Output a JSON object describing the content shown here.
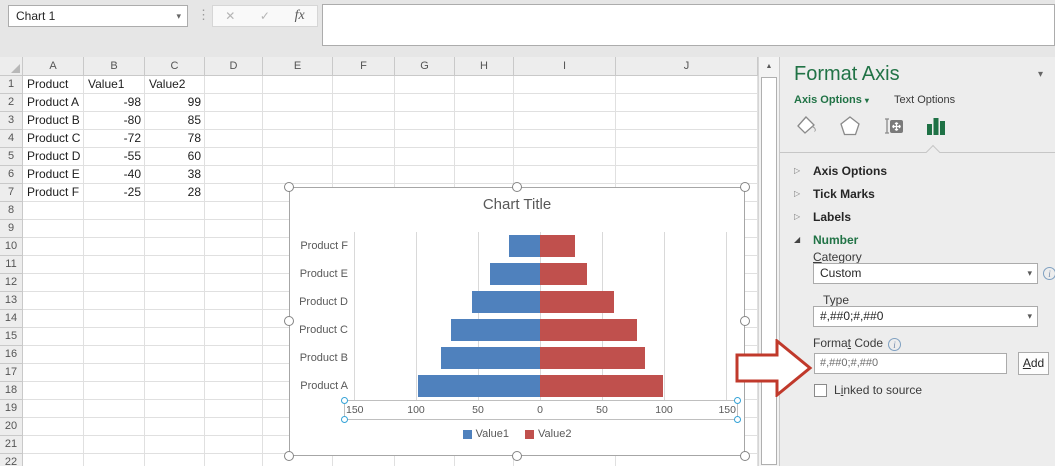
{
  "titlebar": {
    "name_box": "Chart 1",
    "formula_value": "",
    "icons": {
      "dropdown": "▾",
      "grip": "⋮",
      "cancel": "✕",
      "enter": "✓",
      "fx": "fx",
      "scroll_up": "▲",
      "info": "i"
    }
  },
  "grid": {
    "columns": [
      "A",
      "B",
      "C",
      "D",
      "E",
      "F",
      "G",
      "H",
      "I",
      "J"
    ],
    "rows": [
      "1",
      "2",
      "3",
      "4",
      "5",
      "6",
      "7",
      "8",
      "9",
      "10",
      "11",
      "12",
      "13",
      "14",
      "15",
      "16",
      "17",
      "18",
      "19",
      "20",
      "21",
      "22"
    ],
    "table": {
      "rows": [
        [
          "Product",
          "Value1",
          "Value2"
        ],
        [
          "Product A",
          "-98",
          "99"
        ],
        [
          "Product B",
          "-80",
          "85"
        ],
        [
          "Product C",
          "-72",
          "78"
        ],
        [
          "Product D",
          "-55",
          "60"
        ],
        [
          "Product E",
          "-40",
          "38"
        ],
        [
          "Product F",
          "-25",
          "28"
        ]
      ]
    }
  },
  "chart_data": {
    "type": "bar",
    "subtype": "tornado-horizontal",
    "title": "Chart Title",
    "categories": [
      "Product A",
      "Product B",
      "Product C",
      "Product D",
      "Product E",
      "Product F"
    ],
    "category_order_top_to_bottom": [
      "Product F",
      "Product E",
      "Product D",
      "Product C",
      "Product B",
      "Product A"
    ],
    "series": [
      {
        "name": "Value1",
        "color": "#4F81BD",
        "values": [
          -98,
          -80,
          -72,
          -55,
          -40,
          -25
        ]
      },
      {
        "name": "Value2",
        "color": "#C0504D",
        "values": [
          99,
          85,
          78,
          60,
          38,
          28
        ]
      }
    ],
    "x_axis": {
      "range": [
        -150,
        150
      ],
      "tick_step": 50,
      "tick_labels": [
        "150",
        "100",
        "50",
        "0",
        "50",
        "100",
        "150"
      ],
      "number_format": "#,##0;#,##0",
      "selected": true
    },
    "legend": {
      "position": "bottom"
    },
    "gridlines": true,
    "chart_selected": true
  },
  "panel": {
    "title": "Format Axis",
    "tabs": [
      {
        "label": "Axis Options",
        "selected": true
      },
      {
        "label": "Text Options",
        "selected": false
      }
    ],
    "icon_tabs": [
      "fill-line",
      "effects",
      "size-properties",
      "axis-options-selected"
    ],
    "sections": [
      {
        "label": "Axis Options",
        "expanded": false,
        "accent": false
      },
      {
        "label": "Tick Marks",
        "expanded": false,
        "accent": false
      },
      {
        "label": "Labels",
        "expanded": false,
        "accent": false
      },
      {
        "label": "Number",
        "expanded": true,
        "accent": true
      }
    ],
    "number": {
      "category_label": {
        "text": "Category",
        "underline_index": 0
      },
      "category_value": "Custom",
      "type_label": "Type",
      "type_value": "#,##0;#,##0",
      "format_code_label": {
        "text": "Format Code",
        "underline_index": 5
      },
      "format_code_value": "#,##0;#,##0",
      "add_label": {
        "text": "Add",
        "underline_index": 0
      },
      "linked_checkbox": {
        "label": {
          "text": "Linked to source",
          "underline_index": 1
        },
        "checked": false
      }
    }
  },
  "annotation": {
    "arrow_color": "#C0392B",
    "arrow_direction": "right"
  }
}
